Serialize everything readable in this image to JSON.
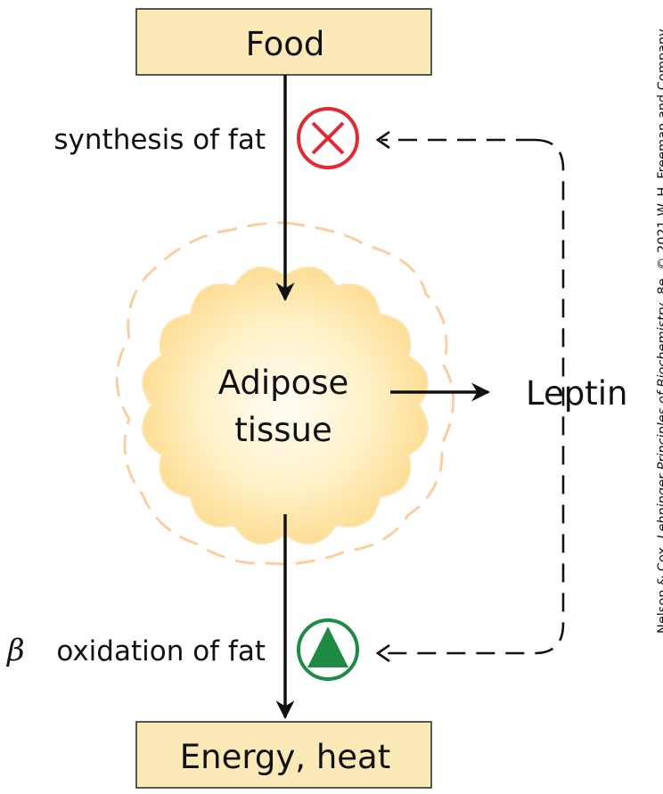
{
  "nodes": {
    "food": "Food",
    "energy": "Energy, heat",
    "tissue_line1": "Adipose",
    "tissue_line2": "tissue",
    "leptin": "Leptin"
  },
  "processes": {
    "synthesis": "synthesis of fat",
    "beta_symbol": "β",
    "oxidation": "oxidation of fat"
  },
  "credit": {
    "authors": "Nelson & Cox,",
    "book": "Lehninger Principles of Biochemistry",
    "edition": ", 8e, © 2021 W. H. Freeman and Company"
  },
  "colors": {
    "box_fill": "#fbe9b7",
    "inhibit": "#e02b33",
    "stimulate": "#1e8a44",
    "tissue_core": "#fffaf0",
    "tissue_edge": "#fcd98a",
    "halo_dash": "#f9cfa1"
  },
  "icons": {
    "inhibit": "circle-x-icon",
    "stimulate": "circle-triangle-icon"
  }
}
